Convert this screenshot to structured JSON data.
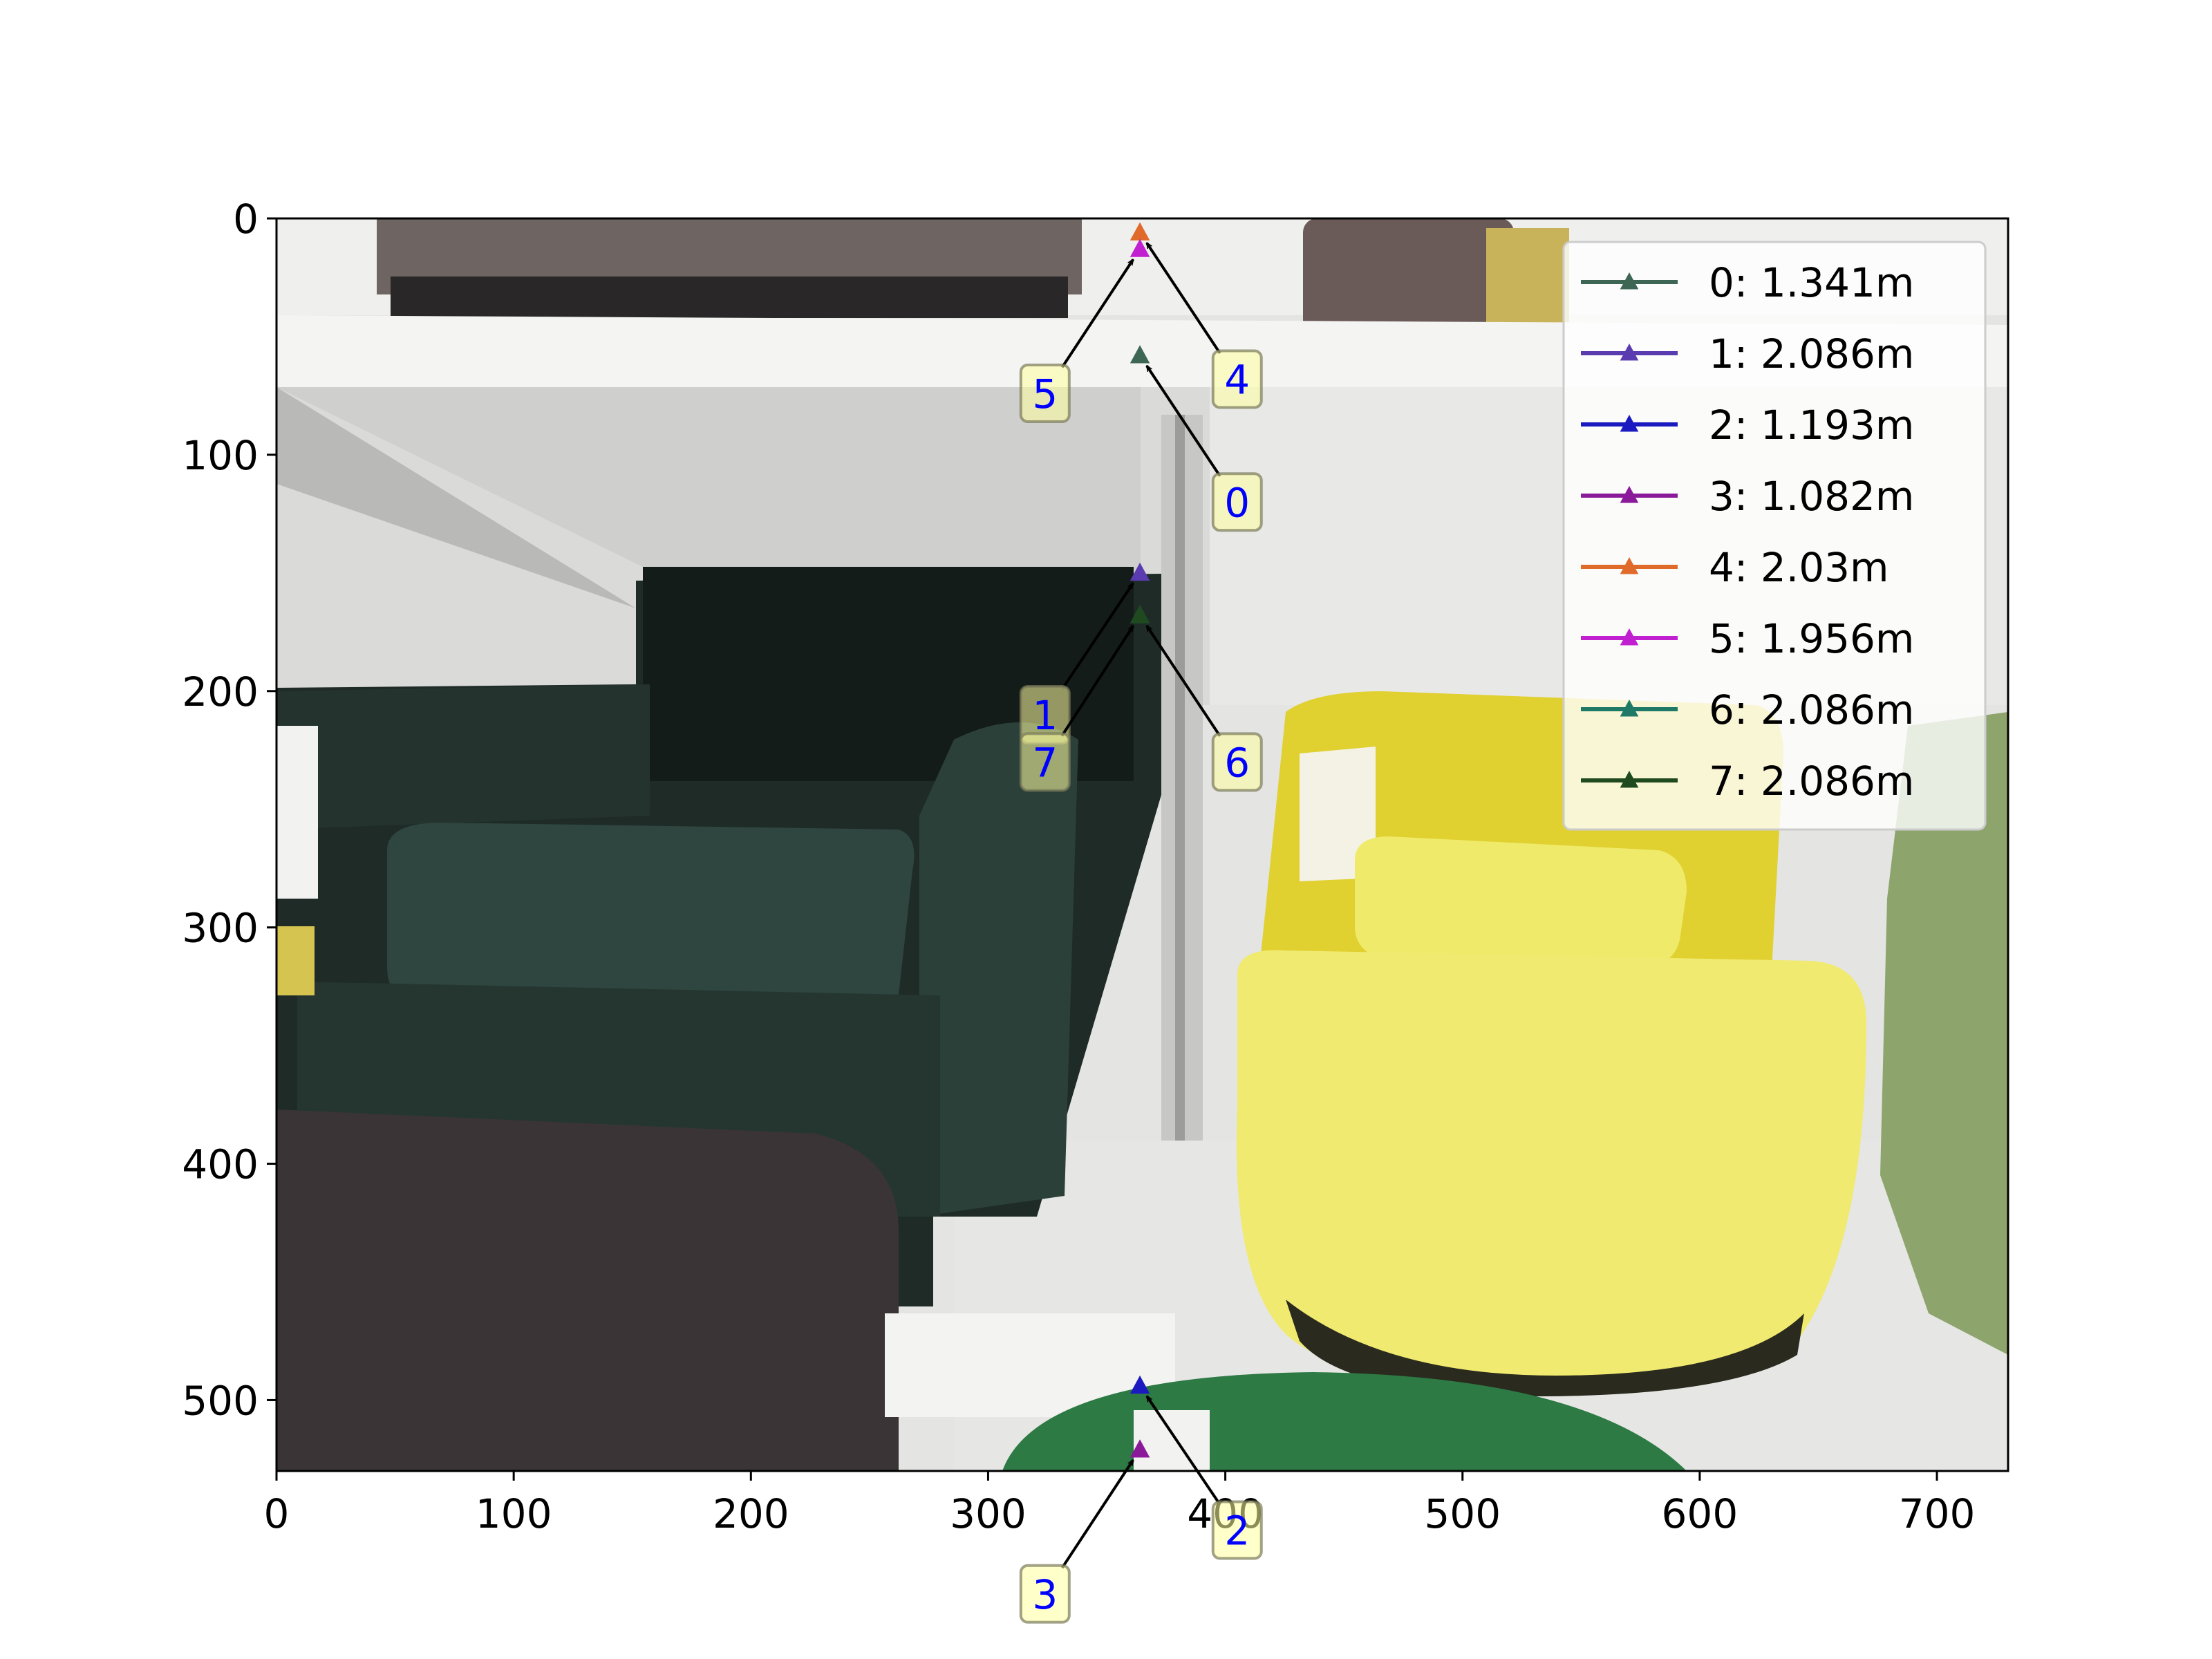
{
  "chart_data": {
    "type": "scatter",
    "title": "",
    "xlabel": "",
    "ylabel": "",
    "xlim": [
      0,
      730
    ],
    "ylim": [
      530,
      0
    ],
    "y_inverted": true,
    "background": "photo of a furniture store shelf: dark green armchair, yellow swivel chair, white shelves",
    "xticks": [
      0,
      100,
      200,
      300,
      400,
      500,
      600,
      700
    ],
    "yticks": [
      0,
      100,
      200,
      300,
      400,
      500
    ],
    "legend_position": "top-right",
    "series": [
      {
        "name": "0: 1.341m",
        "label": "0",
        "x": 364,
        "y": 58,
        "color": "#3e6655"
      },
      {
        "name": "1: 2.086m",
        "label": "1",
        "x": 364,
        "y": 150,
        "color": "#5b3bb0"
      },
      {
        "name": "2: 1.193m",
        "label": "2",
        "x": 364,
        "y": 494,
        "color": "#1a1ac0"
      },
      {
        "name": "3: 1.082m",
        "label": "3",
        "x": 364,
        "y": 521,
        "color": "#8a1a9a"
      },
      {
        "name": "4: 2.03m",
        "label": "4",
        "x": 364,
        "y": 6,
        "color": "#e06a2a"
      },
      {
        "name": "5: 1.956m",
        "label": "5",
        "x": 364,
        "y": 13,
        "color": "#c020d0"
      },
      {
        "name": "6: 2.086m",
        "label": "6",
        "x": 364,
        "y": 168,
        "color": "#1e7a66"
      },
      {
        "name": "7: 2.086m",
        "label": "7",
        "x": 364,
        "y": 168,
        "color": "#1f4a1f"
      }
    ],
    "annotations": [
      {
        "label": "0",
        "point_x": 364,
        "point_y": 58,
        "text_x": 405,
        "text_y": 120
      },
      {
        "label": "1",
        "point_x": 364,
        "point_y": 150,
        "text_x": 324,
        "text_y": 210
      },
      {
        "label": "2",
        "point_x": 364,
        "point_y": 494,
        "text_x": 405,
        "text_y": 555
      },
      {
        "label": "3",
        "point_x": 364,
        "point_y": 521,
        "text_x": 324,
        "text_y": 582
      },
      {
        "label": "4",
        "point_x": 364,
        "point_y": 6,
        "text_x": 405,
        "text_y": 68
      },
      {
        "label": "5",
        "point_x": 364,
        "point_y": 13,
        "text_x": 324,
        "text_y": 74
      },
      {
        "label": "6",
        "point_x": 364,
        "point_y": 168,
        "text_x": 405,
        "text_y": 230
      },
      {
        "label": "7",
        "point_x": 364,
        "point_y": 168,
        "text_x": 324,
        "text_y": 230
      }
    ]
  }
}
